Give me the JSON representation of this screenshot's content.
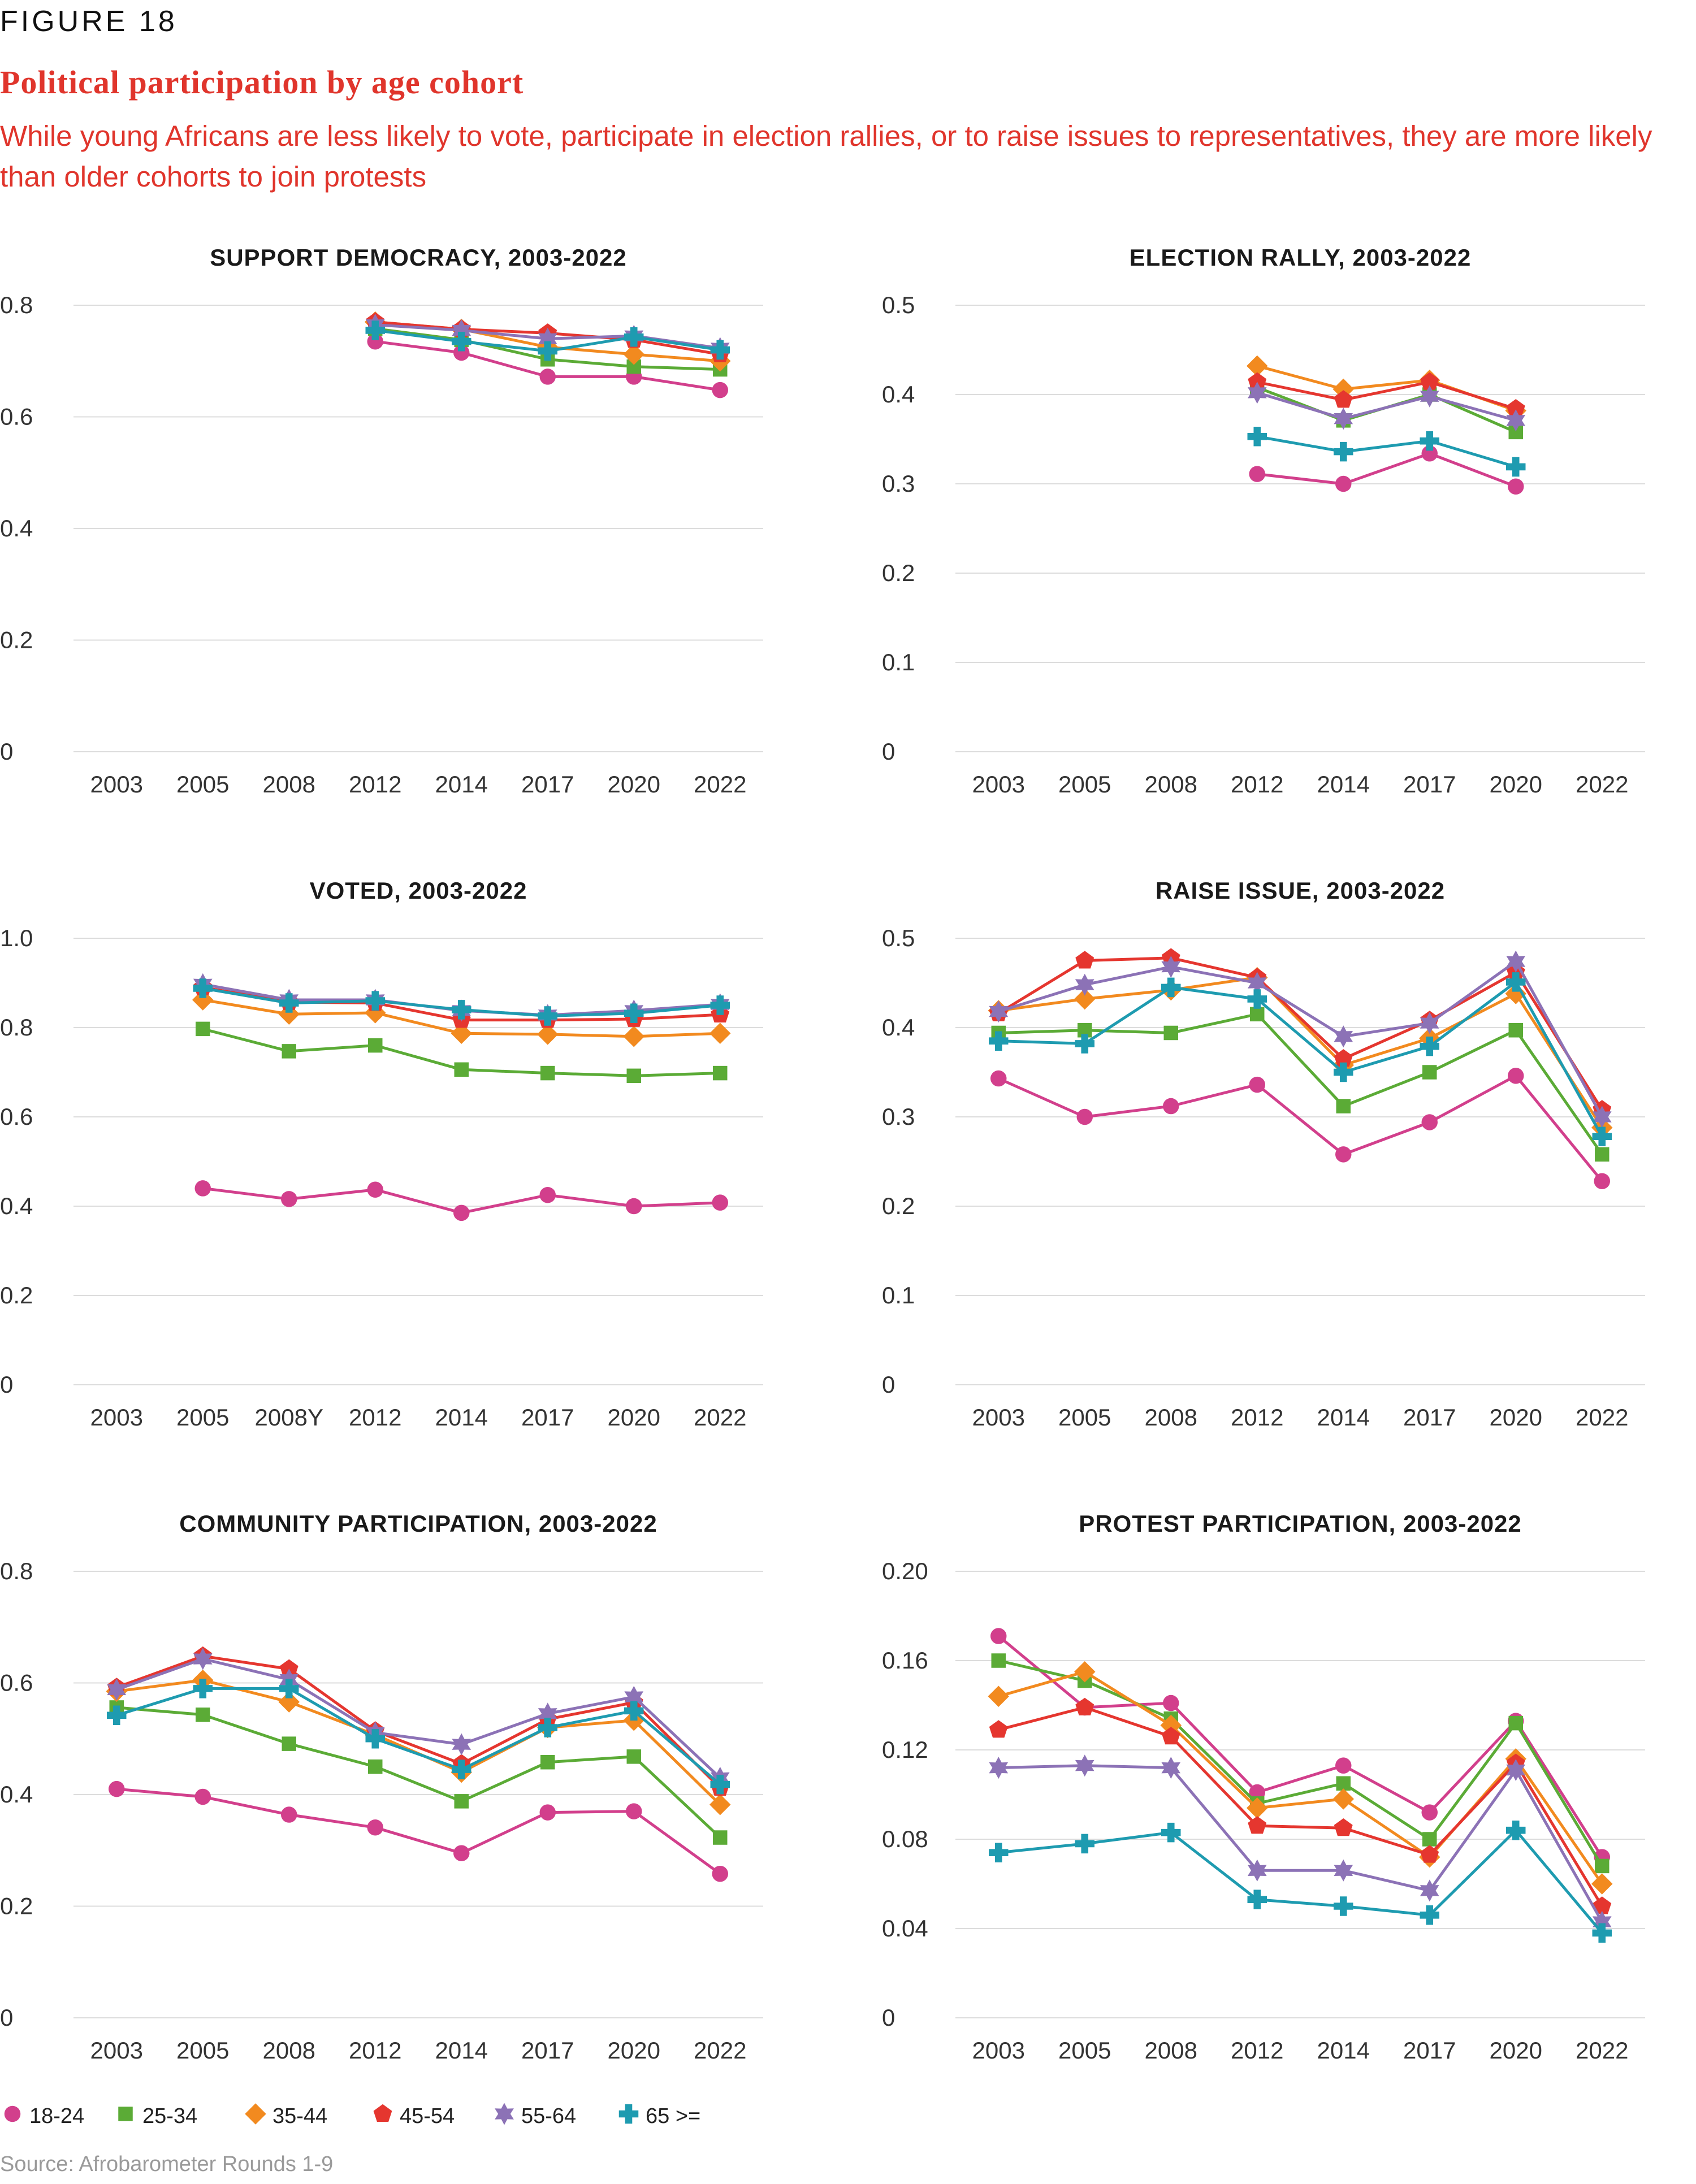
{
  "figure_label": "FIGURE 18",
  "title": "Political participation by age cohort",
  "subtitle": "While young Africans are less likely to vote, participate in election rallies, or to raise issues to representatives, they are more likely than older cohorts to join protests",
  "source": "Source: Afrobarometer Rounds 1-9",
  "colors": {
    "18-24": "#d23f8c",
    "25-34": "#5bab36",
    "35-44": "#f28a1f",
    "45-54": "#e5362f",
    "55-64": "#8c72b6",
    "65 >=": "#1e9bb0"
  },
  "legend": [
    {
      "label": "18-24",
      "marker": "circle"
    },
    {
      "label": "25-34",
      "marker": "square"
    },
    {
      "label": "35-44",
      "marker": "diamond"
    },
    {
      "label": "45-54",
      "marker": "pentagon"
    },
    {
      "label": "55-64",
      "marker": "star"
    },
    {
      "label": "65 >=",
      "marker": "cross"
    }
  ],
  "chart_data": [
    {
      "type": "line",
      "title": "SUPPORT DEMOCRACY, 2003-2022",
      "categories": [
        "2003",
        "2005",
        "2008",
        "2012",
        "2014",
        "2017",
        "2020",
        "2022"
      ],
      "ylim": [
        0,
        0.8
      ],
      "yticks": [
        "0",
        "0.2",
        "0.4",
        "0.6",
        "0.8"
      ],
      "grid": true,
      "series": [
        {
          "name": "18-24",
          "values": [
            null,
            null,
            null,
            0.735,
            0.715,
            0.672,
            0.672,
            0.648
          ]
        },
        {
          "name": "25-34",
          "values": [
            null,
            null,
            null,
            0.758,
            0.738,
            0.703,
            0.69,
            0.685
          ]
        },
        {
          "name": "35-44",
          "values": [
            null,
            null,
            null,
            0.77,
            0.757,
            0.725,
            0.712,
            0.7
          ]
        },
        {
          "name": "45-54",
          "values": [
            null,
            null,
            null,
            0.77,
            0.757,
            0.75,
            0.738,
            0.712
          ]
        },
        {
          "name": "55-64",
          "values": [
            null,
            null,
            null,
            0.765,
            0.755,
            0.74,
            0.745,
            0.723
          ]
        },
        {
          "name": "65 >=",
          "values": [
            null,
            null,
            null,
            0.755,
            0.735,
            0.718,
            0.743,
            0.72
          ]
        }
      ]
    },
    {
      "type": "line",
      "title": "ELECTION RALLY, 2003-2022",
      "categories": [
        "2003",
        "2005",
        "2008",
        "2012",
        "2014",
        "2017",
        "2020",
        "2022"
      ],
      "ylim": [
        0,
        0.5
      ],
      "yticks": [
        "0",
        "0.1",
        "0.2",
        "0.3",
        "0.4",
        "0.5"
      ],
      "grid": true,
      "series": [
        {
          "name": "18-24",
          "values": [
            null,
            null,
            null,
            0.311,
            0.3,
            0.334,
            0.297,
            null
          ]
        },
        {
          "name": "25-34",
          "values": [
            null,
            null,
            null,
            0.408,
            0.371,
            0.4,
            0.358,
            null
          ]
        },
        {
          "name": "35-44",
          "values": [
            null,
            null,
            null,
            0.432,
            0.406,
            0.416,
            0.382,
            null
          ]
        },
        {
          "name": "45-54",
          "values": [
            null,
            null,
            null,
            0.414,
            0.394,
            0.414,
            0.384,
            null
          ]
        },
        {
          "name": "55-64",
          "values": [
            null,
            null,
            null,
            0.402,
            0.373,
            0.398,
            0.371,
            null
          ]
        },
        {
          "name": "65 >=",
          "values": [
            null,
            null,
            null,
            0.353,
            0.336,
            0.348,
            0.319,
            null
          ]
        }
      ]
    },
    {
      "type": "line",
      "title": "VOTED, 2003-2022",
      "categories": [
        "2003",
        "2005",
        "2008Y",
        "2012",
        "2014",
        "2017",
        "2020",
        "2022"
      ],
      "ylim": [
        0,
        1.0
      ],
      "yticks": [
        "0",
        "0.2",
        "0.4",
        "0.6",
        "0.8",
        "1.0"
      ],
      "grid": true,
      "series": [
        {
          "name": "18-24",
          "values": [
            null,
            0.44,
            0.416,
            0.437,
            0.385,
            0.425,
            0.4,
            0.408
          ]
        },
        {
          "name": "25-34",
          "values": [
            null,
            0.797,
            0.747,
            0.76,
            0.706,
            0.698,
            0.692,
            0.698
          ]
        },
        {
          "name": "35-44",
          "values": [
            null,
            0.862,
            0.83,
            0.833,
            0.787,
            0.785,
            0.78,
            0.787
          ]
        },
        {
          "name": "45-54",
          "values": [
            null,
            0.89,
            0.857,
            0.855,
            0.817,
            0.817,
            0.819,
            0.829
          ]
        },
        {
          "name": "55-64",
          "values": [
            null,
            0.897,
            0.862,
            0.862,
            0.838,
            0.828,
            0.838,
            0.852
          ]
        },
        {
          "name": "65 >=",
          "values": [
            null,
            0.888,
            0.855,
            0.86,
            0.84,
            0.826,
            0.832,
            0.85
          ]
        }
      ]
    },
    {
      "type": "line",
      "title": "RAISE ISSUE, 2003-2022",
      "categories": [
        "2003",
        "2005",
        "2008",
        "2012",
        "2014",
        "2017",
        "2020",
        "2022"
      ],
      "ylim": [
        0,
        0.5
      ],
      "yticks": [
        "0",
        "0.1",
        "0.2",
        "0.3",
        "0.4",
        "0.5"
      ],
      "grid": true,
      "series": [
        {
          "name": "18-24",
          "values": [
            0.343,
            0.3,
            0.312,
            0.336,
            0.258,
            0.294,
            0.346,
            0.228
          ]
        },
        {
          "name": "25-34",
          "values": [
            0.394,
            0.397,
            0.394,
            0.415,
            0.312,
            0.35,
            0.397,
            0.258
          ]
        },
        {
          "name": "35-44",
          "values": [
            0.419,
            0.432,
            0.442,
            0.456,
            0.358,
            0.388,
            0.438,
            0.288
          ]
        },
        {
          "name": "45-54",
          "values": [
            0.416,
            0.475,
            0.478,
            0.456,
            0.365,
            0.408,
            0.462,
            0.308
          ]
        },
        {
          "name": "55-64",
          "values": [
            0.418,
            0.448,
            0.468,
            0.45,
            0.39,
            0.405,
            0.474,
            0.3
          ]
        },
        {
          "name": "65 >=",
          "values": [
            0.385,
            0.382,
            0.445,
            0.432,
            0.35,
            0.379,
            0.451,
            0.278
          ]
        }
      ]
    },
    {
      "type": "line",
      "title": "COMMUNITY PARTICIPATION, 2003-2022",
      "categories": [
        "2003",
        "2005",
        "2008",
        "2012",
        "2014",
        "2017",
        "2020",
        "2022"
      ],
      "ylim": [
        0,
        0.8
      ],
      "yticks": [
        "0",
        "0.2",
        "0.4",
        "0.6",
        "0.8"
      ],
      "grid": true,
      "series": [
        {
          "name": "18-24",
          "values": [
            0.41,
            0.396,
            0.364,
            0.341,
            0.295,
            0.368,
            0.37,
            0.258
          ]
        },
        {
          "name": "25-34",
          "values": [
            0.556,
            0.543,
            0.491,
            0.45,
            0.388,
            0.458,
            0.468,
            0.323
          ]
        },
        {
          "name": "35-44",
          "values": [
            0.585,
            0.605,
            0.566,
            0.507,
            0.44,
            0.52,
            0.533,
            0.382
          ]
        },
        {
          "name": "45-54",
          "values": [
            0.592,
            0.648,
            0.625,
            0.514,
            0.455,
            0.535,
            0.565,
            0.412
          ]
        },
        {
          "name": "55-64",
          "values": [
            0.588,
            0.643,
            0.606,
            0.511,
            0.49,
            0.545,
            0.575,
            0.43
          ]
        },
        {
          "name": "65 >=",
          "values": [
            0.542,
            0.59,
            0.59,
            0.5,
            0.445,
            0.52,
            0.55,
            0.418
          ]
        }
      ]
    },
    {
      "type": "line",
      "title": "PROTEST PARTICIPATION, 2003-2022",
      "categories": [
        "2003",
        "2005",
        "2008",
        "2012",
        "2014",
        "2017",
        "2020",
        "2022"
      ],
      "ylim": [
        0,
        0.2
      ],
      "yticks": [
        "0",
        "0.04",
        "0.08",
        "0.12",
        "0.16",
        "0.20"
      ],
      "grid": true,
      "series": [
        {
          "name": "18-24",
          "values": [
            0.171,
            0.139,
            0.141,
            0.101,
            0.113,
            0.092,
            0.133,
            0.072
          ]
        },
        {
          "name": "25-34",
          "values": [
            0.16,
            0.151,
            0.134,
            0.096,
            0.105,
            0.08,
            0.132,
            0.068
          ]
        },
        {
          "name": "35-44",
          "values": [
            0.144,
            0.155,
            0.131,
            0.094,
            0.098,
            0.072,
            0.116,
            0.06
          ]
        },
        {
          "name": "45-54",
          "values": [
            0.129,
            0.139,
            0.126,
            0.086,
            0.085,
            0.073,
            0.114,
            0.05
          ]
        },
        {
          "name": "55-64",
          "values": [
            0.112,
            0.113,
            0.112,
            0.066,
            0.066,
            0.057,
            0.111,
            0.043
          ]
        },
        {
          "name": "65 >=",
          "values": [
            0.074,
            0.078,
            0.083,
            0.053,
            0.05,
            0.046,
            0.084,
            0.038
          ]
        }
      ]
    }
  ]
}
